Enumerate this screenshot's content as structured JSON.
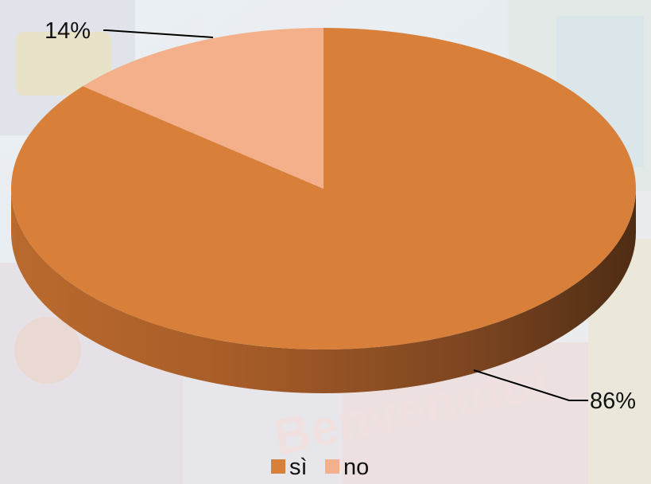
{
  "chart_data": {
    "type": "pie",
    "style": "3d",
    "title": "",
    "categories": [
      "sì",
      "no"
    ],
    "values": [
      86,
      14
    ],
    "data_labels": [
      "86%",
      "14%"
    ],
    "colors": [
      "#d8803a",
      "#f4b08a"
    ],
    "legend": {
      "position": "bottom",
      "entries": [
        "sì",
        "no"
      ]
    }
  },
  "background": {
    "watermark_text": "Benvenuto!"
  }
}
